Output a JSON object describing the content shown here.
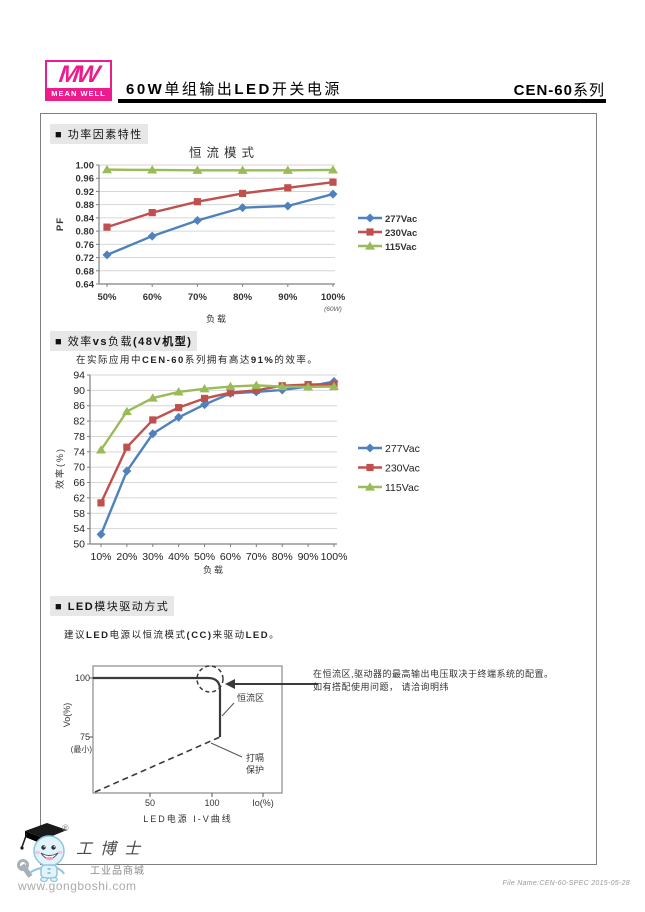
{
  "header": {
    "logo_mw": "MW",
    "logo_brand": "MEAN WELL",
    "title_parts": [
      {
        "t": "60W",
        "b": 1
      },
      {
        "t": "单组输出",
        "b": 0
      },
      {
        "t": "LED",
        "b": 1
      },
      {
        "t": "开关电源",
        "b": 0
      }
    ],
    "series_parts": [
      {
        "t": "CEN-60",
        "b": 1
      },
      {
        "t": "系列",
        "b": 0
      }
    ]
  },
  "sections": {
    "power_factor": {
      "heading_parts": [
        {
          "t": "■ 功率因素特性",
          "b": 0
        }
      ]
    },
    "efficiency": {
      "heading_parts": [
        {
          "t": "■ 效率",
          "b": 0
        },
        {
          "t": "vs",
          "b": 1
        },
        {
          "t": "负载",
          "b": 0
        },
        {
          "t": "(48V机型)",
          "b": 1
        }
      ],
      "note_parts": [
        {
          "t": "在实际应用中",
          "b": 0
        },
        {
          "t": "CEN-60",
          "b": 1
        },
        {
          "t": "系列拥有高达",
          "b": 0
        },
        {
          "t": "91%",
          "b": 1
        },
        {
          "t": "的效率。",
          "b": 0
        }
      ]
    },
    "led_drive": {
      "heading_parts": [
        {
          "t": "■ ",
          "b": 0
        },
        {
          "t": "LED",
          "b": 1
        },
        {
          "t": "模块驱动方式",
          "b": 0
        }
      ],
      "note_parts": [
        {
          "t": "建议",
          "b": 0
        },
        {
          "t": "LED",
          "b": 1
        },
        {
          "t": "电源以恒流模式",
          "b": 0
        },
        {
          "t": "(CC)",
          "b": 1
        },
        {
          "t": "来驱动",
          "b": 0
        },
        {
          "t": "LED",
          "b": 1
        },
        {
          "t": "。",
          "b": 0
        }
      ]
    }
  },
  "chart_data": [
    {
      "type": "line",
      "title": "恒流模式",
      "xlabel": "负载",
      "ylabel": "PF",
      "x_note": "(60W)",
      "categories": [
        "50%",
        "60%",
        "70%",
        "80%",
        "90%",
        "100%"
      ],
      "ylim": [
        0.64,
        1.0
      ],
      "ytick_step": 0.04,
      "ytick_decimals": 2,
      "grid": true,
      "legend_position": "right",
      "series": [
        {
          "name": "277Vac",
          "color": "#4F81BD",
          "marker": "diamond",
          "values": [
            0.728,
            0.785,
            0.832,
            0.871,
            0.876,
            0.912
          ]
        },
        {
          "name": "230Vac",
          "color": "#C0504D",
          "marker": "square",
          "values": [
            0.812,
            0.856,
            0.889,
            0.914,
            0.931,
            0.948
          ]
        },
        {
          "name": "115Vac",
          "color": "#9BBB59",
          "marker": "triangle",
          "values": [
            0.986,
            0.985,
            0.984,
            0.984,
            0.984,
            0.985
          ]
        }
      ]
    },
    {
      "type": "line",
      "title": "",
      "xlabel": "负载",
      "ylabel": "效率(%)",
      "categories": [
        "10%",
        "20%",
        "30%",
        "40%",
        "50%",
        "60%",
        "70%",
        "80%",
        "90%",
        "100%"
      ],
      "ylim": [
        50,
        94
      ],
      "ytick_step": 4,
      "ytick_decimals": 0,
      "grid": true,
      "legend_position": "right",
      "series": [
        {
          "name": "277Vac",
          "color": "#4F81BD",
          "marker": "diamond",
          "values": [
            52.5,
            69,
            78.7,
            83,
            86.3,
            89.2,
            89.6,
            90.1,
            91,
            92.3
          ]
        },
        {
          "name": "230Vac",
          "color": "#C0504D",
          "marker": "square",
          "values": [
            60.7,
            75.2,
            82.3,
            85.5,
            87.9,
            89.4,
            90,
            91.2,
            91.5,
            91.6
          ]
        },
        {
          "name": "115Vac",
          "color": "#9BBB59",
          "marker": "triangle",
          "values": [
            74.5,
            84.5,
            88,
            89.6,
            90.4,
            91,
            91.3,
            91,
            90.9,
            91
          ]
        }
      ]
    }
  ],
  "diagram": {
    "y100": "100",
    "y75": "75",
    "y75_note": "(最小)",
    "ylabel": "Vo(%)",
    "x50": "50",
    "x100": "100",
    "xlabel": "Io(%)",
    "cc_label": "恒流区",
    "hiccup_label_1": "打嗝",
    "hiccup_label_2": "保护",
    "caption": "LED电源 I-V曲线",
    "annotation_1": "在恒流区,驱动器的最高输出电压取决于终端系统的配置。",
    "annotation_2": "如有搭配使用问题， 请洽询明纬"
  },
  "footer": {
    "reg_mark": "®",
    "mascot_title": "工博士",
    "mascot_subtitle": "工业品商城",
    "website": "www.gongboshi.com",
    "file_info": "File Name:CEN-60-SPEC   2015-05-28"
  },
  "colors": {
    "brand_pink": "#EC1C8D",
    "series_blue": "#4F81BD",
    "series_red": "#C0504D",
    "series_green": "#9BBB59",
    "axis_gray": "#808080",
    "grid_gray": "#D6D6D6",
    "heading_bg": "#E7E7E7"
  }
}
